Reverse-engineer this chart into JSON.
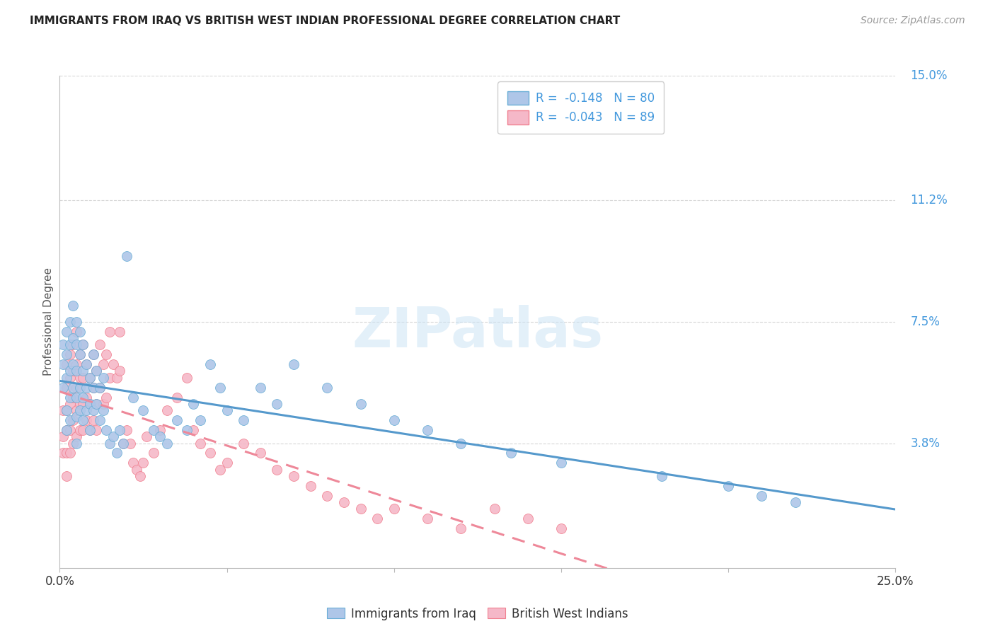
{
  "title": "IMMIGRANTS FROM IRAQ VS BRITISH WEST INDIAN PROFESSIONAL DEGREE CORRELATION CHART",
  "source": "Source: ZipAtlas.com",
  "ylabel": "Professional Degree",
  "x_min": 0.0,
  "x_max": 0.25,
  "y_min": 0.0,
  "y_max": 0.15,
  "y_tick_labels_right": [
    "15.0%",
    "11.2%",
    "7.5%",
    "3.8%"
  ],
  "y_tick_positions_right": [
    0.15,
    0.112,
    0.075,
    0.038
  ],
  "grid_color": "#cccccc",
  "background_color": "#ffffff",
  "watermark_text": "ZIPatlas",
  "legend_r1": "R =  -0.148",
  "legend_n1": "N = 80",
  "legend_r2": "R =  -0.043",
  "legend_n2": "N = 89",
  "color_iraq": "#aec6e8",
  "color_bwi": "#f5b8c8",
  "color_iraq_edge": "#6aaed6",
  "color_bwi_edge": "#f08090",
  "color_iraq_line": "#5599cc",
  "color_bwi_line": "#ee8899",
  "color_axis_label": "#4499dd",
  "scatter_iraq_x": [
    0.001,
    0.001,
    0.001,
    0.002,
    0.002,
    0.002,
    0.002,
    0.002,
    0.003,
    0.003,
    0.003,
    0.003,
    0.003,
    0.004,
    0.004,
    0.004,
    0.004,
    0.005,
    0.005,
    0.005,
    0.005,
    0.005,
    0.005,
    0.006,
    0.006,
    0.006,
    0.006,
    0.007,
    0.007,
    0.007,
    0.007,
    0.008,
    0.008,
    0.008,
    0.009,
    0.009,
    0.009,
    0.01,
    0.01,
    0.01,
    0.011,
    0.011,
    0.012,
    0.012,
    0.013,
    0.013,
    0.014,
    0.015,
    0.016,
    0.017,
    0.018,
    0.019,
    0.02,
    0.022,
    0.025,
    0.028,
    0.03,
    0.032,
    0.035,
    0.038,
    0.04,
    0.042,
    0.045,
    0.048,
    0.05,
    0.055,
    0.06,
    0.065,
    0.07,
    0.08,
    0.09,
    0.1,
    0.11,
    0.12,
    0.135,
    0.15,
    0.18,
    0.2,
    0.21,
    0.22
  ],
  "scatter_iraq_y": [
    0.068,
    0.062,
    0.055,
    0.072,
    0.065,
    0.058,
    0.048,
    0.042,
    0.075,
    0.068,
    0.06,
    0.052,
    0.045,
    0.08,
    0.07,
    0.062,
    0.055,
    0.075,
    0.068,
    0.06,
    0.052,
    0.046,
    0.038,
    0.072,
    0.065,
    0.055,
    0.048,
    0.068,
    0.06,
    0.052,
    0.045,
    0.062,
    0.055,
    0.048,
    0.058,
    0.05,
    0.042,
    0.065,
    0.055,
    0.048,
    0.06,
    0.05,
    0.055,
    0.045,
    0.058,
    0.048,
    0.042,
    0.038,
    0.04,
    0.035,
    0.042,
    0.038,
    0.095,
    0.052,
    0.048,
    0.042,
    0.04,
    0.038,
    0.045,
    0.042,
    0.05,
    0.045,
    0.062,
    0.055,
    0.048,
    0.045,
    0.055,
    0.05,
    0.062,
    0.055,
    0.05,
    0.045,
    0.042,
    0.038,
    0.035,
    0.032,
    0.028,
    0.025,
    0.022,
    0.02
  ],
  "scatter_bwi_x": [
    0.001,
    0.001,
    0.001,
    0.002,
    0.002,
    0.002,
    0.002,
    0.002,
    0.002,
    0.003,
    0.003,
    0.003,
    0.003,
    0.003,
    0.004,
    0.004,
    0.004,
    0.004,
    0.004,
    0.005,
    0.005,
    0.005,
    0.005,
    0.005,
    0.006,
    0.006,
    0.006,
    0.006,
    0.007,
    0.007,
    0.007,
    0.007,
    0.008,
    0.008,
    0.008,
    0.009,
    0.009,
    0.009,
    0.01,
    0.01,
    0.01,
    0.011,
    0.011,
    0.011,
    0.012,
    0.012,
    0.013,
    0.013,
    0.014,
    0.014,
    0.015,
    0.015,
    0.016,
    0.017,
    0.018,
    0.018,
    0.019,
    0.02,
    0.021,
    0.022,
    0.023,
    0.024,
    0.025,
    0.026,
    0.028,
    0.03,
    0.032,
    0.035,
    0.038,
    0.04,
    0.042,
    0.045,
    0.048,
    0.05,
    0.055,
    0.06,
    0.065,
    0.07,
    0.075,
    0.08,
    0.085,
    0.09,
    0.095,
    0.1,
    0.11,
    0.12,
    0.13,
    0.14,
    0.15
  ],
  "scatter_bwi_y": [
    0.048,
    0.04,
    0.035,
    0.062,
    0.055,
    0.048,
    0.042,
    0.035,
    0.028,
    0.065,
    0.058,
    0.05,
    0.042,
    0.035,
    0.068,
    0.06,
    0.052,
    0.045,
    0.038,
    0.072,
    0.062,
    0.055,
    0.048,
    0.04,
    0.065,
    0.058,
    0.05,
    0.042,
    0.068,
    0.058,
    0.05,
    0.042,
    0.062,
    0.052,
    0.045,
    0.058,
    0.05,
    0.042,
    0.065,
    0.055,
    0.045,
    0.06,
    0.05,
    0.042,
    0.068,
    0.055,
    0.062,
    0.05,
    0.065,
    0.052,
    0.072,
    0.058,
    0.062,
    0.058,
    0.072,
    0.06,
    0.038,
    0.042,
    0.038,
    0.032,
    0.03,
    0.028,
    0.032,
    0.04,
    0.035,
    0.042,
    0.048,
    0.052,
    0.058,
    0.042,
    0.038,
    0.035,
    0.03,
    0.032,
    0.038,
    0.035,
    0.03,
    0.028,
    0.025,
    0.022,
    0.02,
    0.018,
    0.015,
    0.018,
    0.015,
    0.012,
    0.018,
    0.015,
    0.012
  ]
}
